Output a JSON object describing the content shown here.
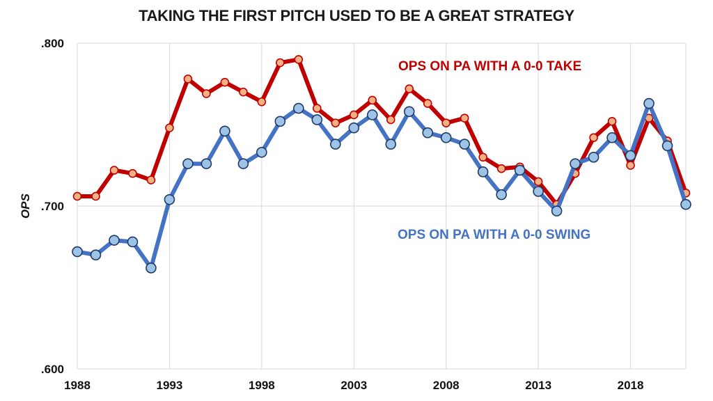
{
  "chart_data": {
    "type": "line",
    "title": "TAKING THE FIRST PITCH USED TO BE A GREAT STRATEGY",
    "xlabel": "",
    "ylabel": "OPS",
    "ylim": [
      0.6,
      0.8
    ],
    "xlim": [
      1988,
      2021
    ],
    "x_ticks": [
      "1988",
      "1993",
      "1998",
      "2003",
      "2008",
      "2013",
      "2018"
    ],
    "y_ticks": [
      ".600",
      ".700",
      ".800"
    ],
    "grid": true,
    "x": [
      1988,
      1989,
      1990,
      1991,
      1992,
      1993,
      1994,
      1995,
      1996,
      1997,
      1998,
      1999,
      2000,
      2001,
      2002,
      2003,
      2004,
      2005,
      2006,
      2007,
      2008,
      2009,
      2010,
      2011,
      2012,
      2013,
      2014,
      2015,
      2016,
      2017,
      2018,
      2019,
      2020,
      2021
    ],
    "series": [
      {
        "name": "OPS ON PA WITH A 0-0 TAKE",
        "color": "#c00000",
        "marker_color": "#f4b183",
        "values": [
          0.706,
          0.706,
          0.722,
          0.72,
          0.716,
          0.748,
          0.778,
          0.769,
          0.776,
          0.77,
          0.764,
          0.788,
          0.79,
          0.76,
          0.751,
          0.756,
          0.765,
          0.753,
          0.772,
          0.763,
          0.751,
          0.754,
          0.73,
          0.723,
          0.724,
          0.715,
          0.701,
          0.72,
          0.742,
          0.752,
          0.725,
          0.754,
          0.74,
          0.708
        ]
      },
      {
        "name": "OPS ON PA WITH A 0-0 SWING",
        "color": "#4472c4",
        "marker_color": "#9dc3e6",
        "values": [
          0.672,
          0.67,
          0.679,
          0.678,
          0.662,
          0.704,
          0.726,
          0.726,
          0.746,
          0.726,
          0.733,
          0.752,
          0.76,
          0.753,
          0.738,
          0.748,
          0.756,
          0.738,
          0.758,
          0.745,
          0.742,
          0.738,
          0.721,
          0.707,
          0.722,
          0.709,
          0.697,
          0.726,
          0.73,
          0.742,
          0.731,
          0.763,
          0.737,
          0.701
        ]
      }
    ]
  }
}
